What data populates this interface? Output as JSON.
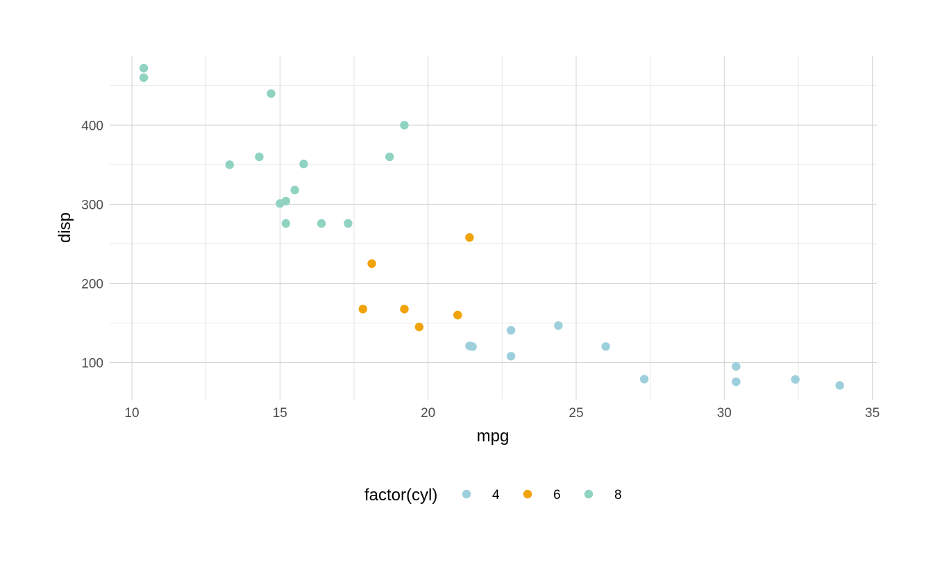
{
  "chart_data": {
    "type": "scatter",
    "title": "",
    "xlabel": "mpg",
    "ylabel": "disp",
    "xlim": [
      9.25,
      35.15
    ],
    "ylim": [
      53,
      488
    ],
    "x_ticks": [
      10,
      15,
      20,
      25,
      30,
      35
    ],
    "y_ticks": [
      100,
      200,
      300,
      400
    ],
    "grid": true,
    "legend": {
      "title": "factor(cyl)",
      "position": "bottom",
      "entries": [
        {
          "label": "4",
          "color": "#9ecfdc"
        },
        {
          "label": "6",
          "color": "#f0a30a"
        },
        {
          "label": "8",
          "color": "#8fd3c0"
        }
      ]
    },
    "series": [
      {
        "name": "4",
        "color": "#9ecfdc",
        "points": [
          [
            22.8,
            108
          ],
          [
            24.4,
            146.7
          ],
          [
            22.8,
            140.8
          ],
          [
            32.4,
            78.7
          ],
          [
            30.4,
            75.7
          ],
          [
            33.9,
            71.1
          ],
          [
            21.5,
            120.1
          ],
          [
            27.3,
            79
          ],
          [
            26.0,
            120.3
          ],
          [
            30.4,
            95.1
          ],
          [
            21.4,
            121
          ]
        ]
      },
      {
        "name": "6",
        "color": "#f0a30a",
        "points": [
          [
            21.0,
            160
          ],
          [
            21.0,
            160
          ],
          [
            21.4,
            258
          ],
          [
            18.1,
            225
          ],
          [
            19.2,
            167.6
          ],
          [
            17.8,
            167.6
          ],
          [
            19.7,
            145
          ]
        ]
      },
      {
        "name": "8",
        "color": "#8fd3c0",
        "points": [
          [
            18.7,
            360
          ],
          [
            14.3,
            360
          ],
          [
            16.4,
            275.8
          ],
          [
            17.3,
            275.8
          ],
          [
            15.2,
            275.8
          ],
          [
            10.4,
            472
          ],
          [
            10.4,
            460
          ],
          [
            14.7,
            440
          ],
          [
            15.5,
            318
          ],
          [
            15.2,
            304
          ],
          [
            13.3,
            350
          ],
          [
            19.2,
            400
          ],
          [
            15.8,
            351
          ],
          [
            15.0,
            301
          ]
        ]
      }
    ]
  }
}
